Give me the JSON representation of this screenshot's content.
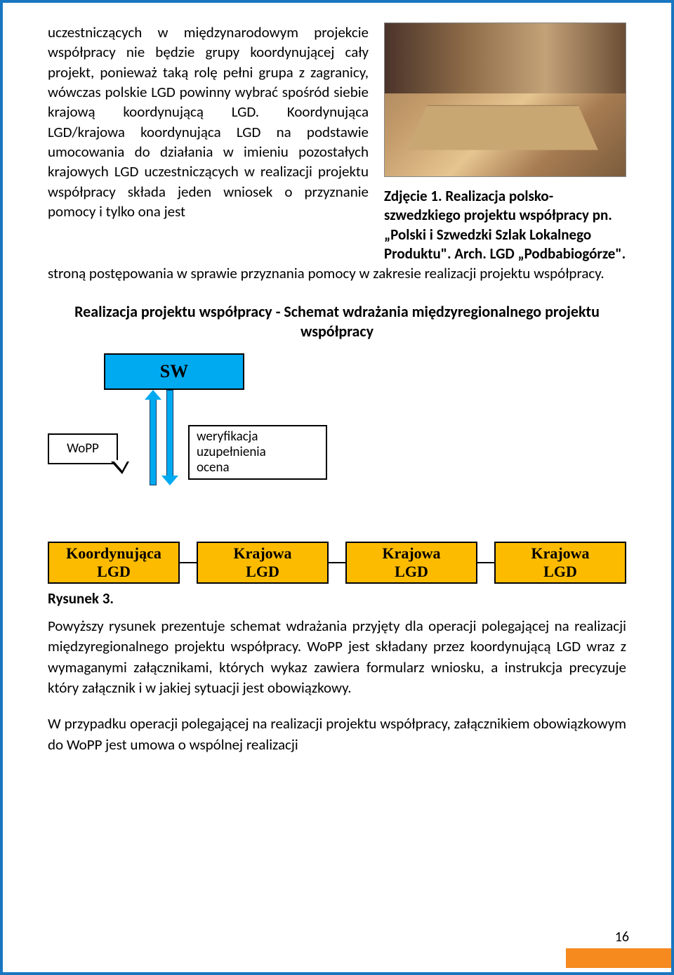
{
  "text": {
    "col_left": "uczestniczących w międzynarodowym projekcie współpracy nie będzie grupy koordynującej cały projekt, ponieważ taką rolę pełni grupa z zagranicy, wówczas polskie LGD powinny wybrać spośród siebie krajową koordynującą LGD. Koordynująca LGD/krajowa koordynująca LGD na podstawie umocowania do działania w imieniu pozostałych krajowych LGD uczestniczących w realizacji projektu współpracy składa jeden wniosek o przyznanie pomocy i tylko ona jest",
    "below": "stroną postępowania w sprawie przyznania pomocy w zakresie realizacji projektu współpracy.",
    "caption": "Zdjęcie 1. Realizacja polsko-szwedzkiego projektu współpracy pn. „Polski i Szwedzki Szlak Lokalnego Produktu\". Arch. LGD „Podbabiogórze\".",
    "heading": "Realizacja projektu współpracy - Schemat wdrażania międzyregionalnego projektu współpracy",
    "rys": "Rysunek 3.",
    "p1": "Powyższy rysunek prezentuje schemat wdrażania przyjęty dla operacji polegającej na realizacji międzyregionalnego projektu współpracy. WoPP jest składany przez koordynującą LGD wraz z wymaganymi załącznikami, których wykaz zawiera formularz wniosku, a instrukcja precyzuje który załącznik i w jakiej sytuacji jest obowiązkowy.",
    "p2": "W przypadku operacji polegającej na realizacji projektu współpracy, załącznikiem obowiązkowym do WoPP jest umowa o wspólnej realizacji"
  },
  "diagram": {
    "sw": "SW",
    "wopp": "WoPP",
    "verify": "weryfikacja\nuzupełnienia\nocena",
    "nodes": [
      "Koordynująca\nLGD",
      "Krajowa\nLGD",
      "Krajowa\nLGD",
      "Krajowa\nLGD"
    ],
    "colors": {
      "sw_bg": "#00aaf0",
      "lgd_bg": "#fdbb00",
      "arrow": "#00aaf0",
      "border": "#000000"
    }
  },
  "page": {
    "number": "16",
    "tab_color": "#f68a1e"
  }
}
